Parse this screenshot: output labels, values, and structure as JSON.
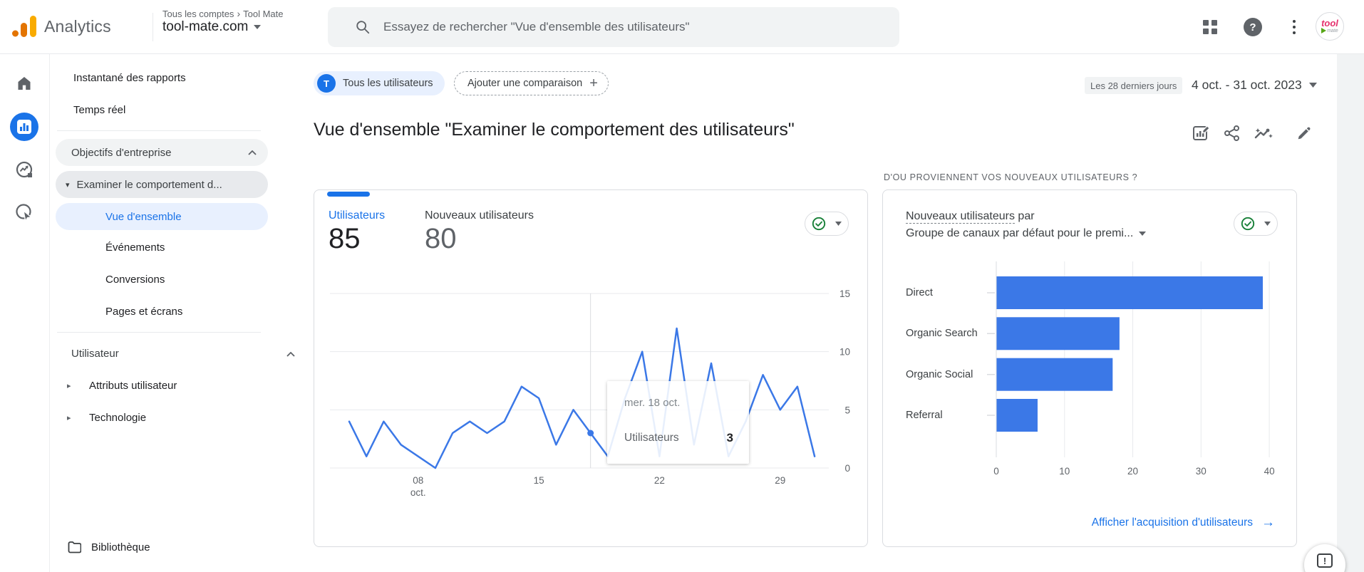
{
  "colors": {
    "accent": "#1a73e8",
    "chart_blue": "#3b78e7",
    "green_check": "#188038",
    "active_bg": "#e8f0fe"
  },
  "header": {
    "app_name": "Analytics",
    "breadcrumb_accounts": "Tous les comptes",
    "breadcrumb_account": "Tool Mate",
    "property": "tool-mate.com",
    "search_placeholder": "Essayez de rechercher \"Vue d'ensemble des utilisateurs\""
  },
  "nav": {
    "snapshot": "Instantané des rapports",
    "realtime": "Temps réel",
    "collection1": "Objectifs d'entreprise",
    "topic1": "Examiner le comportement d...",
    "overview": "Vue d'ensemble",
    "events": "Événements",
    "conversions": "Conversions",
    "pages": "Pages et écrans",
    "collection2": "Utilisateur",
    "topic2": "Attributs utilisateur",
    "topic3": "Technologie",
    "library": "Bibliothèque"
  },
  "toolbar": {
    "chip_initial": "T",
    "all_users": "Tous les utilisateurs",
    "add_comparison": "Ajouter une comparaison",
    "date_badge": "Les 28 derniers jours",
    "date_range": "4 oct. - 31 oct. 2023"
  },
  "page": {
    "title": "Vue d'ensemble \"Examiner le comportement des utilisateurs\""
  },
  "users_card": {
    "metric1_label": "Utilisateurs",
    "metric1_value": "85",
    "metric2_label": "Nouveaux utilisateurs",
    "metric2_value": "80",
    "tooltip": {
      "date": "mer. 18 oct.",
      "label": "Utilisateurs",
      "value": "3"
    }
  },
  "acq_section": {
    "header": "D'OU PROVIENNENT VOS NOUVEAUX UTILISATEURS ?",
    "title_underlined": "Nouveaux utilisateurs",
    "title_rest": " par",
    "title_line2": "Groupe de canaux par défaut pour le premi...",
    "link": "Afficher l'acquisition d'utilisateurs"
  },
  "glyphs": {
    "caret_down": "▾",
    "caret_right": "▸",
    "plus": "+",
    "question": "?",
    "arrow_right": "→",
    "exclamation": "!",
    "breadcrumb_sep": "›"
  },
  "chart_data": [
    {
      "type": "line",
      "title": "Utilisateurs par jour, 4 oct. - 31 oct. 2023",
      "month": "oct.",
      "start_day": 4,
      "days": [
        4,
        5,
        6,
        7,
        8,
        9,
        10,
        11,
        12,
        13,
        14,
        15,
        16,
        17,
        18,
        19,
        20,
        21,
        22,
        23,
        24,
        25,
        26,
        27,
        28,
        29,
        30,
        31
      ],
      "series": [
        {
          "name": "Utilisateurs",
          "values": [
            4,
            1,
            4,
            2,
            1,
            0,
            3,
            4,
            3,
            4,
            7,
            6,
            2,
            5,
            3,
            1,
            6,
            10,
            1,
            12,
            2,
            9,
            1,
            4,
            8,
            5,
            7,
            1
          ]
        }
      ],
      "xticks": [
        {
          "day": 8,
          "label": "08",
          "sub": "oct."
        },
        {
          "day": 15,
          "label": "15"
        },
        {
          "day": 22,
          "label": "22"
        },
        {
          "day": 29,
          "label": "29"
        }
      ],
      "yticks": [
        0,
        5,
        10,
        15
      ],
      "ylim": [
        0,
        15
      ],
      "y_axis_side": "right",
      "grid": true,
      "color": "#3b78e7",
      "highlight": {
        "day": 18,
        "date_label": "mer. 18 oct.",
        "series": "Utilisateurs",
        "value": 3
      }
    },
    {
      "type": "bar",
      "orientation": "horizontal",
      "title": "Nouveaux utilisateurs par Groupe de canaux par défaut",
      "categories": [
        "Direct",
        "Organic Search",
        "Organic Social",
        "Referral"
      ],
      "values": [
        39,
        18,
        17,
        6
      ],
      "xticks": [
        0,
        10,
        20,
        30,
        40
      ],
      "xlim": [
        0,
        44
      ],
      "grid": true,
      "color": "#3b78e7"
    }
  ]
}
